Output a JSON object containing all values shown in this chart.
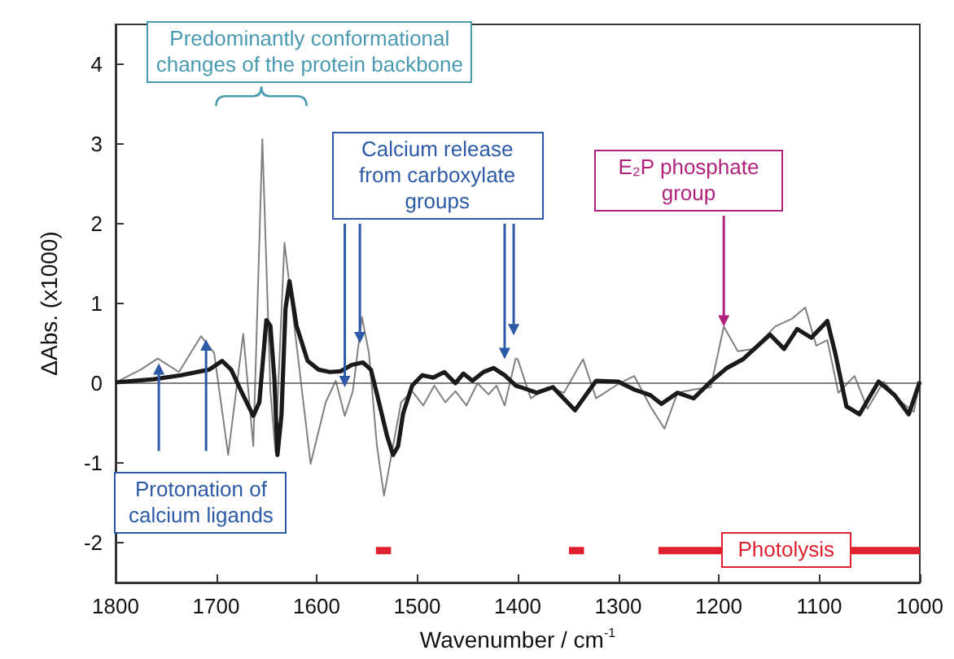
{
  "chart_data": {
    "type": "line",
    "xlabel": "Wavenumber / cm$^{-1}$",
    "ylabel": "ΔAbs. (x1000)",
    "xlim": [
      1800,
      1000
    ],
    "xticks": [
      1800,
      1700,
      1600,
      1500,
      1400,
      1300,
      1200,
      1100,
      1000
    ],
    "ylim": [
      -2.5,
      4.5
    ],
    "yticks": [
      -2,
      -1,
      0,
      1,
      2,
      3,
      4
    ],
    "grid": false,
    "marker": "none",
    "line_style": "solid",
    "ref_lines": [
      {
        "axis": "y",
        "value": 0,
        "color": "#555555"
      }
    ],
    "series": [
      {
        "color": "#1a1a1a",
        "x": [
          1800,
          1762,
          1735,
          1707,
          1694,
          1685,
          1675,
          1663,
          1657,
          1650,
          1646,
          1642,
          1639,
          1635,
          1631,
          1627,
          1620,
          1609,
          1598,
          1587,
          1576,
          1565,
          1554,
          1546,
          1538,
          1530,
          1524,
          1519,
          1514,
          1505,
          1495,
          1484,
          1473,
          1462,
          1454,
          1445,
          1434,
          1424,
          1413,
          1402,
          1397,
          1381,
          1365,
          1343,
          1322,
          1300,
          1284,
          1268,
          1257,
          1241,
          1225,
          1208,
          1192,
          1176,
          1149,
          1135,
          1122,
          1108,
          1092,
          1084,
          1073,
          1060,
          1041,
          1025,
          1011,
          1000
        ],
        "values": [
          0.01,
          0.05,
          0.1,
          0.17,
          0.28,
          0.17,
          -0.1,
          -0.41,
          -0.24,
          0.79,
          0.72,
          0.05,
          -0.9,
          -0.4,
          0.93,
          1.28,
          0.72,
          0.28,
          0.17,
          0.14,
          0.15,
          0.23,
          0.26,
          0.17,
          -0.24,
          -0.66,
          -0.9,
          -0.79,
          -0.38,
          -0.03,
          0.1,
          0.07,
          0.14,
          0,
          0.12,
          0.03,
          0.14,
          0.19,
          0.1,
          -0.03,
          -0.05,
          -0.12,
          -0.05,
          -0.34,
          0.03,
          0.02,
          -0.08,
          -0.15,
          -0.26,
          -0.12,
          -0.19,
          0.02,
          0.19,
          0.3,
          0.61,
          0.43,
          0.68,
          0.57,
          0.78,
          0.37,
          -0.29,
          -0.39,
          0.02,
          -0.15,
          -0.39,
          0.02
        ]
      },
      {
        "color": "#808080",
        "x": [
          1800,
          1775,
          1758,
          1737,
          1715,
          1702,
          1688,
          1673,
          1663,
          1654,
          1646,
          1641,
          1632,
          1621,
          1606,
          1591,
          1581,
          1572,
          1564,
          1555,
          1548,
          1540,
          1533,
          1524,
          1516,
          1505,
          1494,
          1483,
          1472,
          1462,
          1451,
          1440,
          1429,
          1421,
          1413,
          1402,
          1400,
          1387,
          1370,
          1354,
          1335,
          1322,
          1300,
          1284,
          1268,
          1254,
          1241,
          1225,
          1208,
          1195,
          1181,
          1165,
          1144,
          1127,
          1114,
          1103,
          1092,
          1081,
          1065,
          1052,
          1036,
          1020,
          1006,
          1000
        ],
        "values": [
          0.01,
          0.17,
          0.31,
          0.14,
          0.59,
          0.38,
          -0.9,
          0.62,
          -0.79,
          3.06,
          -0.1,
          -0.86,
          1.76,
          0.59,
          -1.01,
          -0.24,
          0.03,
          -0.41,
          -0.1,
          0.83,
          0.38,
          -0.79,
          -1.41,
          -0.79,
          -0.24,
          -0.1,
          -0.28,
          -0.03,
          -0.24,
          -0.1,
          -0.28,
          0,
          -0.14,
          -0.03,
          -0.28,
          0.31,
          0.3,
          -0.19,
          -0.05,
          -0.12,
          0.3,
          -0.19,
          -0.01,
          0.09,
          -0.29,
          -0.57,
          -0.12,
          -0.08,
          -0.05,
          0.71,
          0.4,
          0.43,
          0.71,
          0.81,
          0.95,
          0.47,
          0.54,
          -0.12,
          0.09,
          -0.32,
          0.02,
          -0.22,
          -0.36,
          0.02
        ]
      },
      {
        "color": "#e0202e",
        "x": [
          1541,
          1526
        ],
        "values": [
          -2.1,
          -2.1
        ]
      },
      {
        "color": "#e0202e",
        "x": [
          1349,
          1334
        ],
        "values": [
          -2.1,
          -2.1
        ]
      },
      {
        "color": "#e0202e",
        "x": [
          1260,
          1000
        ],
        "values": [
          -2.1,
          -2.1
        ]
      }
    ],
    "annotations": [
      "Predominantly conformational changes of the protein backbone",
      {
        "text": "Calcium release from carboxylate groups",
        "x": 1572,
        "y": -0.05
      },
      {
        "text": "E₂P phosphate group",
        "x": 1195,
        "y": 0.71
      },
      {
        "text": "Protonation of calcium ligands",
        "x": 1757,
        "y": 0.25
      },
      {
        "text": "Photolysis",
        "x": 1133,
        "y": -2.1
      }
    ]
  }
}
